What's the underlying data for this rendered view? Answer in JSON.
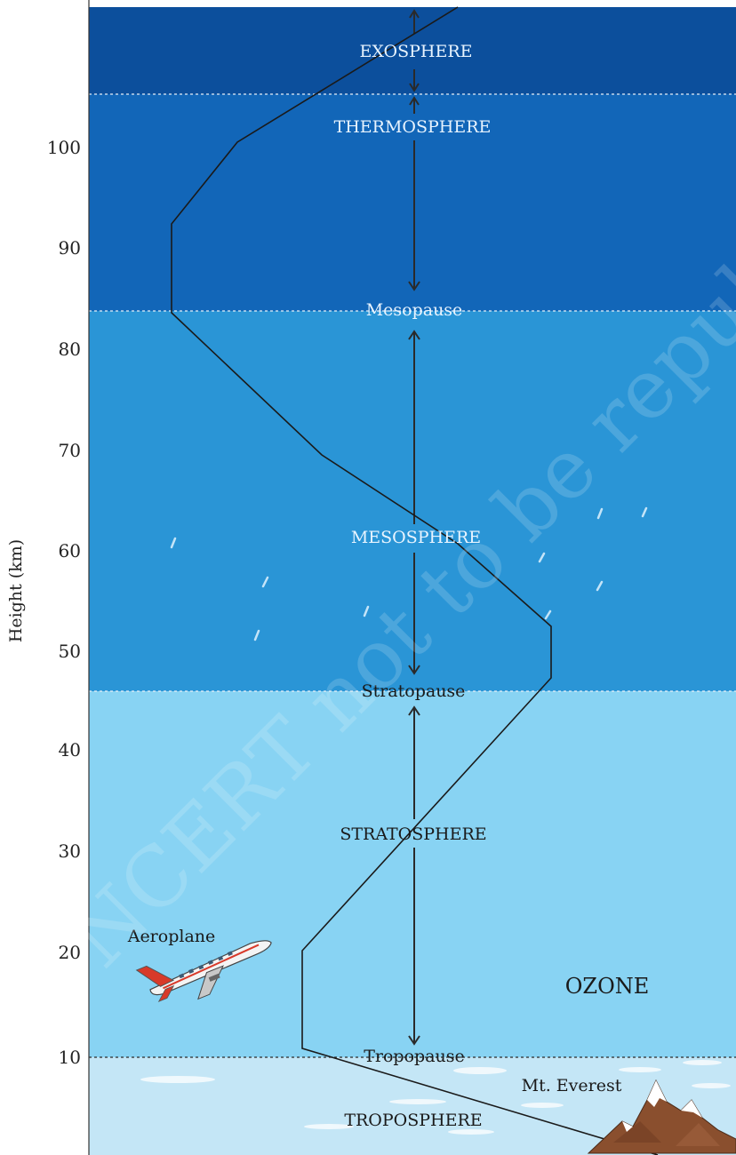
{
  "axis": {
    "label": "Height (km)",
    "ticks": [
      "10",
      "20",
      "30",
      "40",
      "50",
      "60",
      "70",
      "80",
      "90",
      "100"
    ]
  },
  "layers": {
    "exosphere": "EXOSPHERE",
    "thermosphere": "THERMOSPHERE",
    "mesosphere": "MESOSPHERE",
    "stratosphere": "STRATOSPHERE",
    "troposphere": "TROPOSPHERE"
  },
  "boundaries": {
    "mesopause": "Mesopause",
    "stratopause": "Stratopause",
    "tropopause": "Tropopause"
  },
  "annotations": {
    "aeroplane": "Aeroplane",
    "ozone": "OZONE",
    "everest": "Mt. Everest"
  },
  "colors": {
    "exosphere": "#0c4f9c",
    "thermosphere": "#1266b8",
    "mesosphere": "#2a95d6",
    "stratosphere": "#88d3f3",
    "troposphere": "#c4e6f6",
    "light_text": "#e8f4ff",
    "dark_text": "#1a1a1a"
  },
  "watermark": "© NCERT not to be republished"
}
